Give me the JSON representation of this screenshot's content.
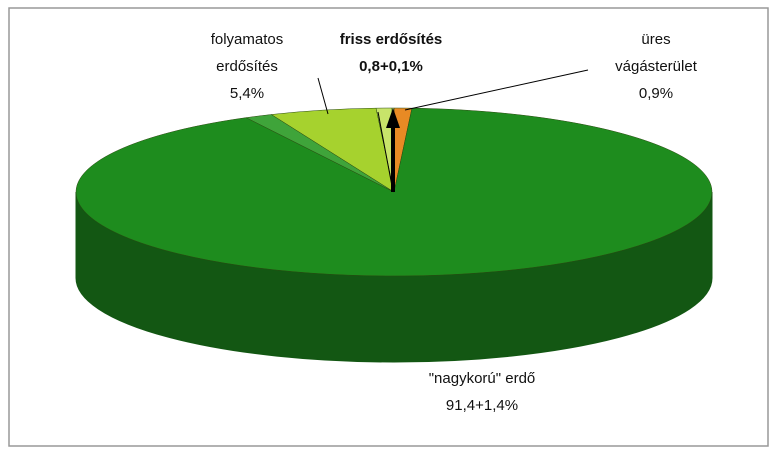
{
  "chart_data": {
    "type": "pie3d",
    "slices": [
      {
        "name": "üres vágásterület",
        "colors": [
          "#e88a24"
        ],
        "values": [
          0.9
        ],
        "value_label": "0,9%"
      },
      {
        "name": "\"nagykorú\" erdő",
        "colors": [
          "#1e8c1e",
          "#3fa43a"
        ],
        "values": [
          91.4,
          1.4
        ],
        "value_label": "91,4+1,4%"
      },
      {
        "name": "folyamatos erdősítés",
        "colors": [
          "#a6d22e"
        ],
        "values": [
          5.4
        ],
        "value_label": "5,4%"
      },
      {
        "name": "friss erdősítés",
        "colors": [
          "#c8e46a",
          "#dff08f"
        ],
        "values": [
          0.8,
          0.1
        ],
        "value_label": "0,8+0,1%"
      }
    ]
  }
}
